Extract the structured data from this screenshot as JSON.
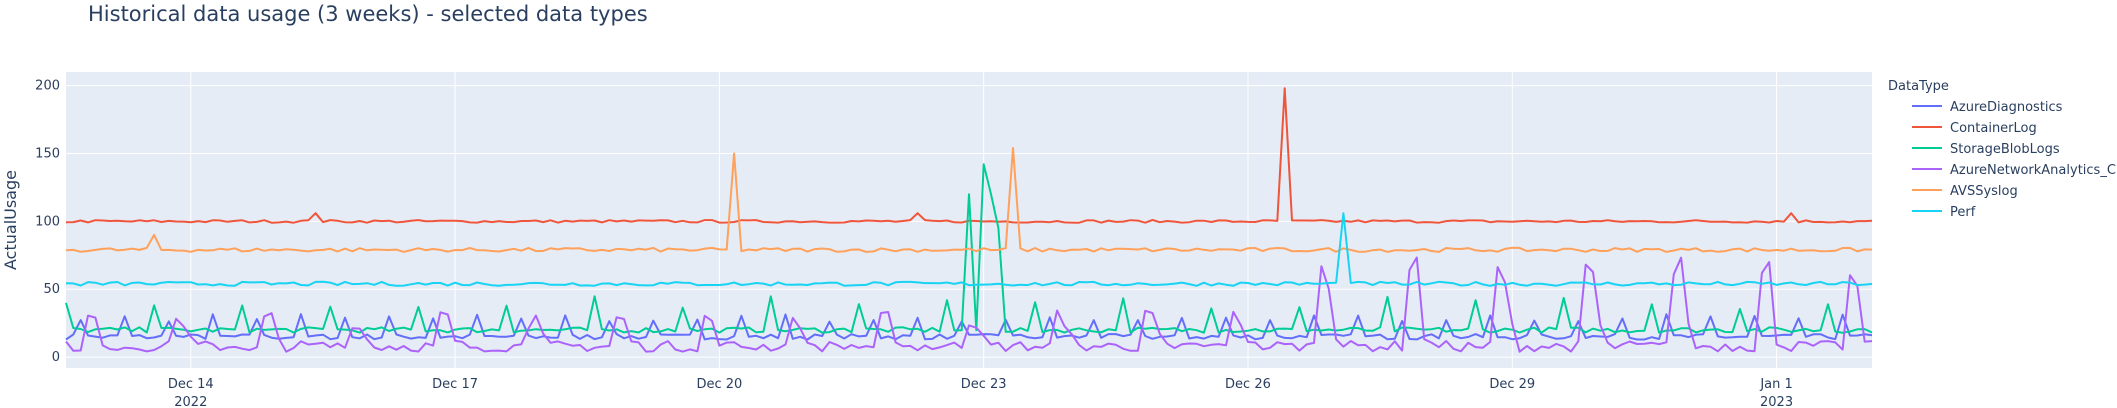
{
  "page": {
    "title": "Historical data usage (3 weeks) - selected data types"
  },
  "chart_data": {
    "type": "line",
    "title": "Historical data usage (3 weeks) - selected data types",
    "xlabel": "",
    "ylabel": "ActualUsage",
    "xlim": [
      "2022-12-12T14:00",
      "2023-01-02T02:00"
    ],
    "ylim": [
      -8,
      210
    ],
    "grid": true,
    "legend_title": "DataType",
    "legend_placement": "right",
    "x_ticks": [
      {
        "date": "2022-12-14",
        "label": "Dec 14",
        "sublabel": "2022"
      },
      {
        "date": "2022-12-17",
        "label": "Dec 17",
        "sublabel": ""
      },
      {
        "date": "2022-12-20",
        "label": "Dec 20",
        "sublabel": ""
      },
      {
        "date": "2022-12-23",
        "label": "Dec 23",
        "sublabel": ""
      },
      {
        "date": "2022-12-26",
        "label": "Dec 26",
        "sublabel": ""
      },
      {
        "date": "2022-12-29",
        "label": "Dec 29",
        "sublabel": ""
      },
      {
        "date": "2023-01-01",
        "label": "Jan 1",
        "sublabel": "2023"
      }
    ],
    "y_ticks": [
      0,
      50,
      100,
      150,
      200
    ],
    "series": [
      {
        "name": "AzureDiagnostics",
        "color": "#636efa",
        "baseline": 15,
        "noise": 2,
        "spikes": []
      },
      {
        "name": "ContainerLog",
        "color": "#ef553b",
        "baseline": 100,
        "noise": 1,
        "spikes": [
          {
            "time": "2022-12-15T10:00",
            "value": 106
          },
          {
            "time": "2022-12-22T06:00",
            "value": 106
          },
          {
            "time": "2022-12-26T10:00",
            "value": 198
          },
          {
            "time": "2023-01-01T04:00",
            "value": 106
          }
        ]
      },
      {
        "name": "StorageBlobLogs",
        "color": "#00cc96",
        "baseline": 20,
        "noise": 2,
        "daily_peak": 35,
        "spikes": [
          {
            "time": "2022-12-22T20:00",
            "value": 120
          },
          {
            "time": "2022-12-23T00:00",
            "value": 142
          },
          {
            "time": "2022-12-23T02:00",
            "value": 120
          },
          {
            "time": "2022-12-23T04:00",
            "value": 95
          }
        ]
      },
      {
        "name": "AzureNetworkAnalytics_CL",
        "color": "#ab63fa",
        "baseline": 8,
        "noise": 4,
        "peak_before": 35,
        "peak_after": 75,
        "change_date": "2022-12-26T00:00",
        "spikes": []
      },
      {
        "name": "AVSSyslog",
        "color": "#ffa15a",
        "baseline": 79,
        "noise": 1.5,
        "spikes": [
          {
            "time": "2022-12-13T14:00",
            "value": 90
          },
          {
            "time": "2022-12-20T04:00",
            "value": 150
          },
          {
            "time": "2022-12-23T08:00",
            "value": 154
          }
        ]
      },
      {
        "name": "Perf",
        "color": "#19d3f3",
        "baseline": 54,
        "noise": 1.5,
        "spikes": [
          {
            "time": "2022-12-27T02:00",
            "value": 106
          }
        ]
      }
    ]
  }
}
